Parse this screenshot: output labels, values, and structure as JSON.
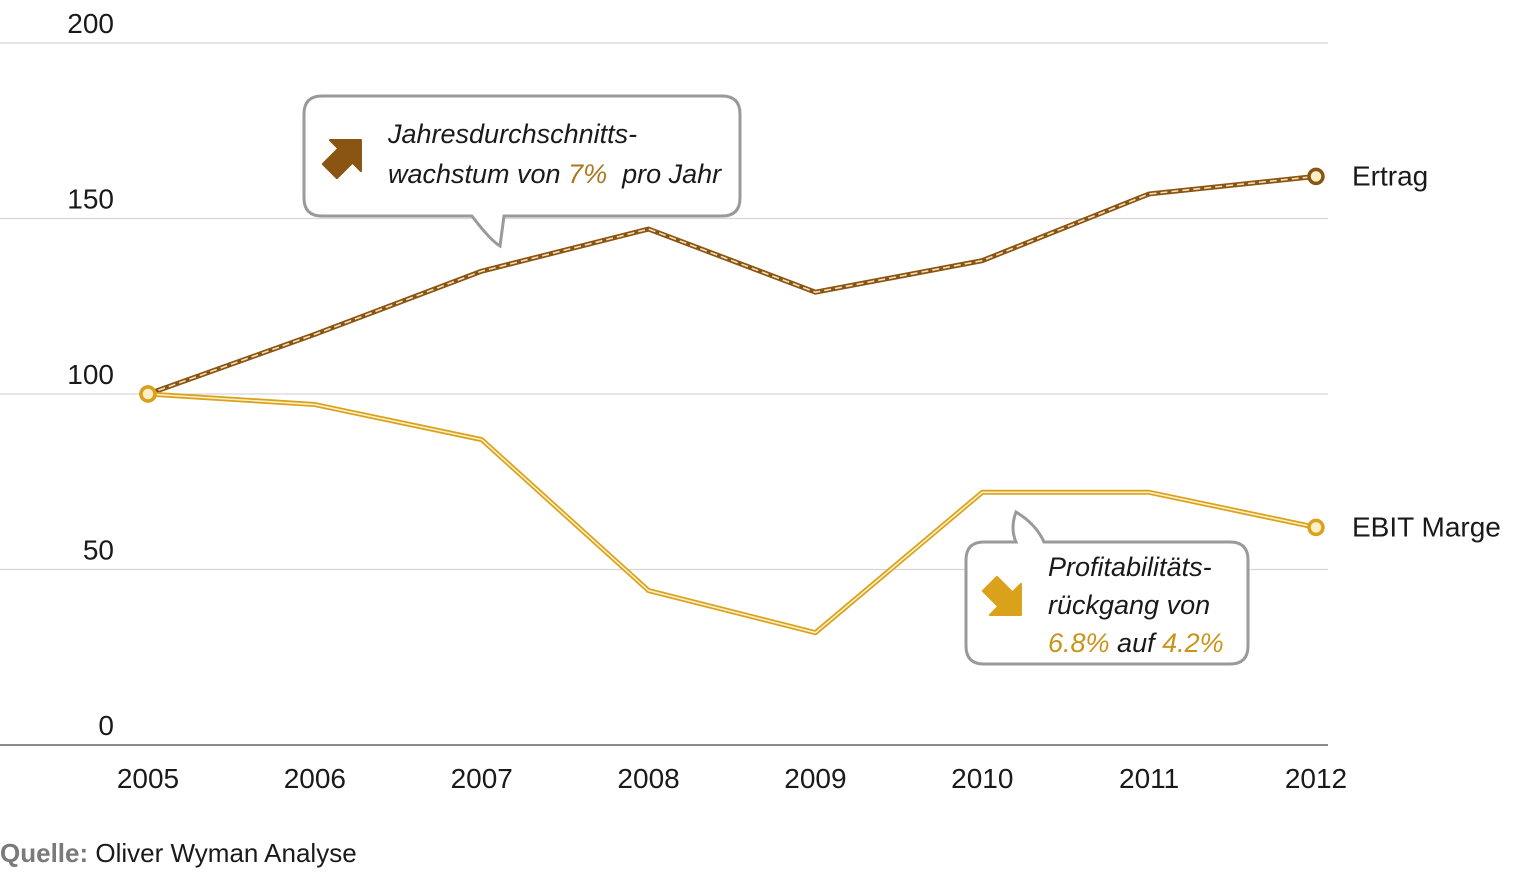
{
  "colors": {
    "ertrag": "#8a5412",
    "ebit": "#d9a21a",
    "ebit_text": "#c8941a",
    "ertrag_text": "#a9771c",
    "grid": "#d6d6d6",
    "axis": "#8c8c8c",
    "callout_border": "#9a9a9a"
  },
  "chart_data": {
    "type": "line",
    "x": [
      "2005",
      "2006",
      "2007",
      "2008",
      "2009",
      "2010",
      "2011",
      "2012"
    ],
    "ylim": [
      0,
      200
    ],
    "yticks": [
      "0",
      "50",
      "100",
      "150",
      "200"
    ],
    "grid": true,
    "series": [
      {
        "name": "Ertrag",
        "values": [
          100,
          117,
          135,
          147,
          129,
          138,
          157,
          162
        ]
      },
      {
        "name": "EBIT Marge",
        "values": [
          100,
          97,
          87,
          44,
          32,
          72,
          72,
          62
        ]
      }
    ]
  },
  "callouts": {
    "growth": {
      "icon": "arrow-up-right-icon",
      "line1": "Jahresdurchschnitts-",
      "line2_a": "wachstum von ",
      "line2_b": "7%",
      "line2_c": "  pro Jahr"
    },
    "profit": {
      "icon": "arrow-down-right-icon",
      "line1": "Profitabilitäts-",
      "line2": "rückgang von",
      "line3_a": "6.8%",
      "line3_b": " auf ",
      "line3_c": "4.2%"
    }
  },
  "source": {
    "label": "Quelle:",
    "text": " Oliver Wyman Analyse"
  }
}
